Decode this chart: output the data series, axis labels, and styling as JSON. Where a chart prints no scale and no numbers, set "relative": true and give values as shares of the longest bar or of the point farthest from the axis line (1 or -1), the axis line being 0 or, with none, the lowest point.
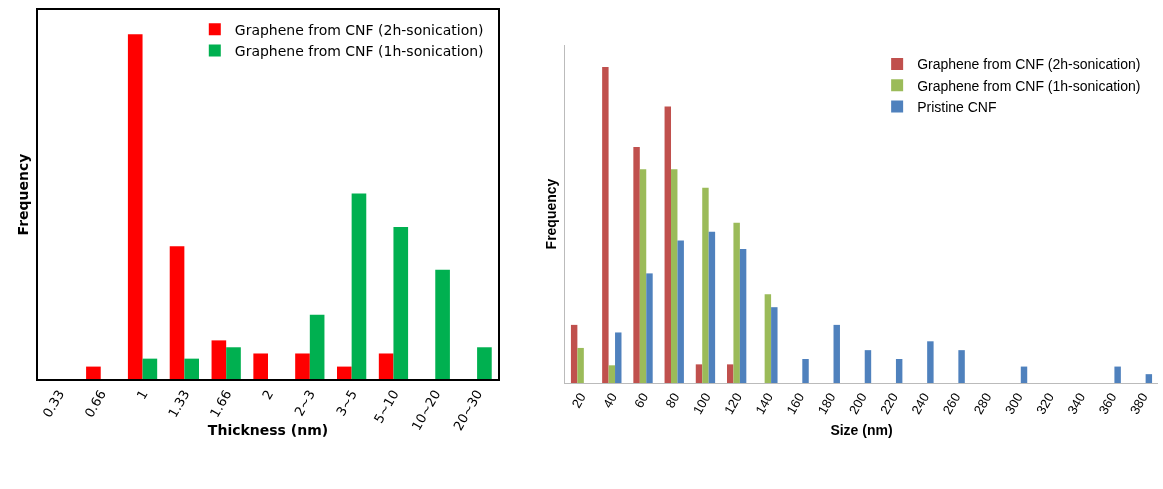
{
  "chart_data": [
    {
      "type": "bar",
      "relative": true,
      "xlabel": "Thickness (nm)",
      "ylabel": "Frequency",
      "legend": "top right",
      "grid": false,
      "categories": [
        "0.33",
        "0.66",
        "1",
        "1.33",
        "1.66",
        "2",
        "2~3",
        "3~5",
        "5~10",
        "10~20",
        "20~30"
      ],
      "series": [
        {
          "name": "Graphene from CNF (2h-sonication)",
          "color": "#ff0000",
          "values": [
            0,
            0.036,
            1,
            0.385,
            0.112,
            0.074,
            0.074,
            0.036,
            0.074,
            0,
            0
          ]
        },
        {
          "name": "Graphene from CNF (1h-sonication)",
          "color": "#00b050",
          "values": [
            0,
            0,
            0.059,
            0.059,
            0.092,
            0,
            0.186,
            0.538,
            0.441,
            0.317,
            0.092
          ]
        }
      ]
    },
    {
      "type": "bar",
      "relative": true,
      "xlabel": "Size (nm)",
      "ylabel": "Frequency",
      "legend": "top right",
      "grid": false,
      "categories": [
        "20",
        "40",
        "60",
        "80",
        "100",
        "120",
        "140",
        "160",
        "180",
        "200",
        "220",
        "240",
        "260",
        "280",
        "300",
        "320",
        "340",
        "360",
        "380"
      ],
      "series": [
        {
          "name": "Graphene from CNF (2h-sonication)",
          "color": "#c0504d",
          "values": [
            0.184,
            1,
            0.747,
            0.875,
            0.059,
            0.059,
            0,
            0,
            0,
            0,
            0,
            0,
            0,
            0,
            0,
            0,
            0,
            0,
            0
          ]
        },
        {
          "name": "Graphene from CNF (1h-sonication)",
          "color": "#9bbb59",
          "values": [
            0.111,
            0.056,
            0.677,
            0.677,
            0.618,
            0.507,
            0.281,
            0,
            0,
            0,
            0,
            0,
            0,
            0,
            0,
            0,
            0,
            0,
            0
          ]
        },
        {
          "name": "Pristine CNF",
          "color": "#4f81bd",
          "values": [
            0,
            0.16,
            0.347,
            0.451,
            0.479,
            0.424,
            0.24,
            0.076,
            0.184,
            0.104,
            0.076,
            0.132,
            0.104,
            0,
            0.052,
            0,
            0,
            0.052,
            0.028
          ]
        }
      ]
    }
  ]
}
